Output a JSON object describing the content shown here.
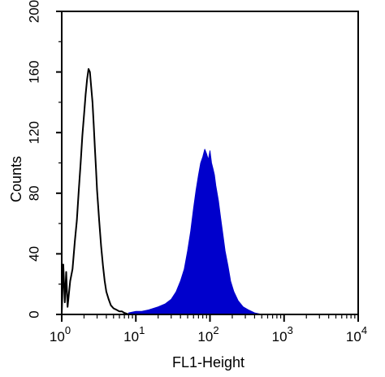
{
  "chart_data": {
    "type": "area",
    "title": "",
    "xlabel": "FL1-Height",
    "ylabel": "Counts",
    "x_scale": "log",
    "xlim": [
      1,
      10000
    ],
    "ylim": [
      0,
      200
    ],
    "grid": false,
    "legend": "none",
    "x_ticks": [
      {
        "base": "10",
        "exp": "0",
        "value": 1
      },
      {
        "base": "10",
        "exp": "1",
        "value": 10
      },
      {
        "base": "10",
        "exp": "2",
        "value": 100
      },
      {
        "base": "10",
        "exp": "3",
        "value": 1000
      },
      {
        "base": "10",
        "exp": "4",
        "value": 10000
      }
    ],
    "y_ticks": [
      "0",
      "40",
      "80",
      "120",
      "160",
      "200"
    ],
    "series": [
      {
        "kind": "outline",
        "color": "#000000",
        "fill": "none",
        "x": [
          1.0,
          1.05,
          1.1,
          1.15,
          1.2,
          1.3,
          1.4,
          1.5,
          1.6,
          1.7,
          1.8,
          1.9,
          2.0,
          2.1,
          2.2,
          2.3,
          2.4,
          2.5,
          2.6,
          2.7,
          2.8,
          2.9,
          3.0,
          3.2,
          3.4,
          3.6,
          3.8,
          4.0,
          4.3,
          4.6,
          5.0,
          5.5,
          6.0,
          6.5,
          7.0,
          8.0
        ],
        "y": [
          0,
          33,
          8,
          28,
          5,
          22,
          30,
          48,
          62,
          82,
          100,
          118,
          132,
          145,
          155,
          162,
          160,
          150,
          140,
          125,
          110,
          96,
          82,
          62,
          45,
          32,
          22,
          15,
          10,
          6,
          4,
          3,
          2,
          2,
          1,
          0
        ]
      },
      {
        "kind": "filled",
        "color": "#0000cc",
        "fill": "#0000cc",
        "x": [
          8,
          10,
          12,
          15,
          20,
          25,
          30,
          35,
          40,
          45,
          50,
          55,
          60,
          65,
          70,
          75,
          80,
          85,
          90,
          95,
          100,
          105,
          110,
          115,
          120,
          130,
          140,
          150,
          160,
          175,
          190,
          210,
          240,
          280,
          330,
          400,
          500
        ],
        "y": [
          1,
          2,
          2,
          3,
          5,
          7,
          10,
          15,
          22,
          30,
          42,
          55,
          70,
          82,
          92,
          100,
          104,
          109,
          106,
          102,
          108,
          100,
          96,
          92,
          85,
          75,
          63,
          52,
          42,
          32,
          22,
          15,
          9,
          5,
          3,
          1,
          0
        ]
      }
    ]
  }
}
